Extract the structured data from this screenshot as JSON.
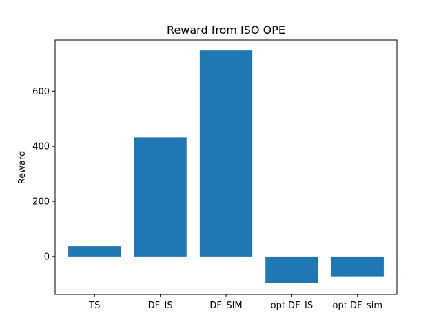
{
  "chart_data": {
    "type": "bar",
    "title": "Reward from ISO OPE",
    "xlabel": "",
    "ylabel": "Reward",
    "categories": [
      "TS",
      "DF_IS",
      "DF_SIM",
      "opt DF_IS",
      "opt DF_sim"
    ],
    "values": [
      37,
      432,
      748,
      -97,
      -72
    ],
    "ylim": [
      -138,
      786
    ],
    "yticks": [
      0,
      200,
      400,
      600
    ],
    "grid": false,
    "bar_color": "#1f77b4"
  }
}
